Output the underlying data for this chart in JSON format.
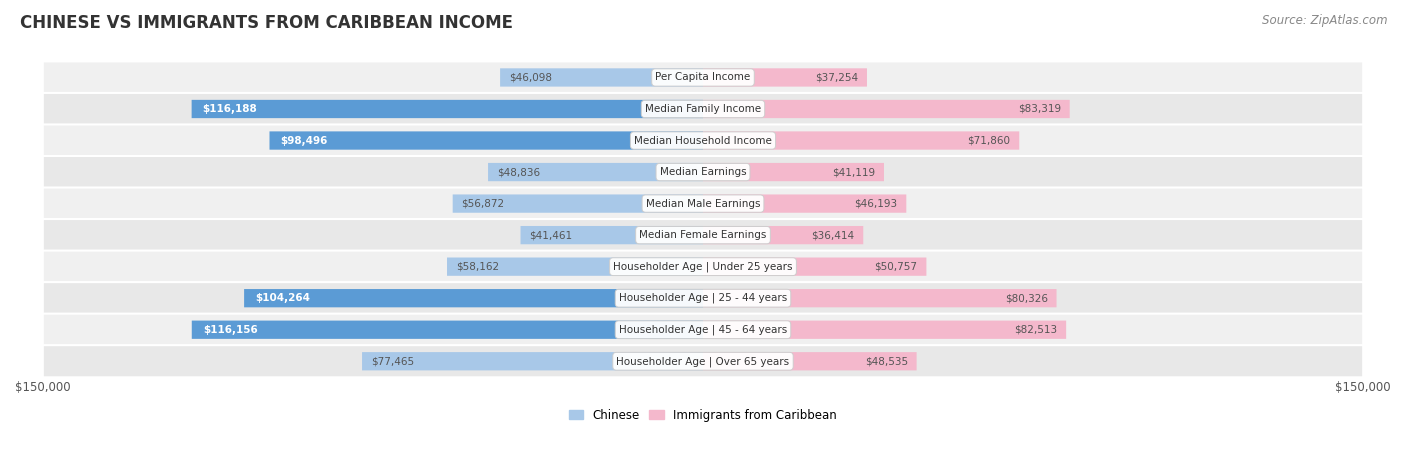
{
  "title": "CHINESE VS IMMIGRANTS FROM CARIBBEAN INCOME",
  "source": "Source: ZipAtlas.com",
  "categories": [
    "Per Capita Income",
    "Median Family Income",
    "Median Household Income",
    "Median Earnings",
    "Median Male Earnings",
    "Median Female Earnings",
    "Householder Age | Under 25 years",
    "Householder Age | 25 - 44 years",
    "Householder Age | 45 - 64 years",
    "Householder Age | Over 65 years"
  ],
  "chinese_values": [
    46098,
    116188,
    98496,
    48836,
    56872,
    41461,
    58162,
    104264,
    116156,
    77465
  ],
  "caribbean_values": [
    37254,
    83319,
    71860,
    41119,
    46193,
    36414,
    50757,
    80326,
    82513,
    48535
  ],
  "chinese_color_light": "#a8c8e8",
  "chinese_color_dark": "#5b9bd5",
  "caribbean_color_light": "#f4b8cc",
  "caribbean_color_dark": "#e05080",
  "row_bg_odd": "#f0f0f0",
  "row_bg_even": "#e8e8e8",
  "max_value": 150000,
  "x_tick_label_left": "$150,000",
  "x_tick_label_right": "$150,000",
  "legend_chinese": "Chinese",
  "legend_caribbean": "Immigrants from Caribbean",
  "title_fontsize": 12,
  "source_fontsize": 8.5,
  "cat_fontsize": 7.5,
  "value_fontsize": 7.5,
  "bar_height": 0.58,
  "inside_threshold": 90000
}
